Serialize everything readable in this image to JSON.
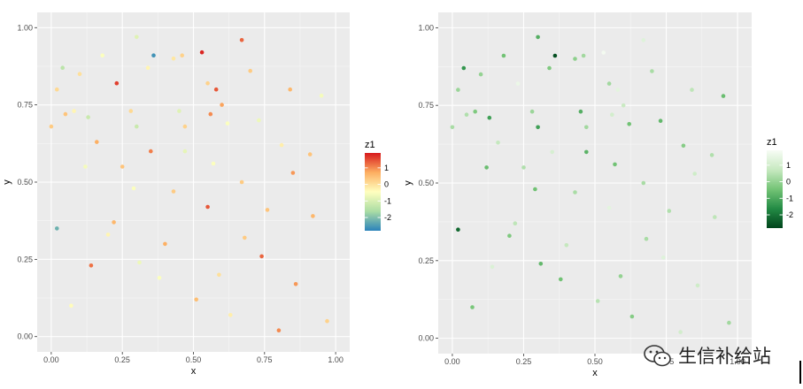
{
  "watermark": {
    "text": "生信补给站"
  },
  "chart_data": [
    {
      "type": "scatter",
      "title": "",
      "xlabel": "x",
      "ylabel": "y",
      "xlim": [
        0,
        1
      ],
      "ylim": [
        0,
        1
      ],
      "x_ticks": [
        "0.00",
        "0.25",
        "0.50",
        "0.75",
        "1.00"
      ],
      "y_ticks": [
        "0.00",
        "0.25",
        "0.50",
        "0.75",
        "1.00"
      ],
      "grid": true,
      "legend": {
        "title": "z1",
        "position": "right",
        "ticks": [
          "1",
          "0",
          "-1",
          "-2"
        ],
        "range": [
          -2.8,
          1.9
        ]
      },
      "colormap": [
        "#d7191c",
        "#fdae61",
        "#ffffbf",
        "#abdda4",
        "#2b83ba"
      ],
      "points": [
        {
          "x": 0.3,
          "y": 0.97,
          "z": -0.9
        },
        {
          "x": 0.46,
          "y": 0.91,
          "z": 0.2
        },
        {
          "x": 0.67,
          "y": 0.96,
          "z": 1.3
        },
        {
          "x": 0.53,
          "y": 0.92,
          "z": 1.8
        },
        {
          "x": 0.36,
          "y": 0.91,
          "z": -2.6
        },
        {
          "x": 0.18,
          "y": 0.91,
          "z": -0.5
        },
        {
          "x": 0.43,
          "y": 0.9,
          "z": -0.1
        },
        {
          "x": 0.34,
          "y": 0.87,
          "z": -0.3
        },
        {
          "x": 0.04,
          "y": 0.87,
          "z": -1.4
        },
        {
          "x": 0.1,
          "y": 0.85,
          "z": 0.0
        },
        {
          "x": 0.55,
          "y": 0.82,
          "z": 0.2
        },
        {
          "x": 0.58,
          "y": 0.8,
          "z": 1.4
        },
        {
          "x": 0.02,
          "y": 0.8,
          "z": 0.1
        },
        {
          "x": 0.84,
          "y": 0.8,
          "z": 0.6
        },
        {
          "x": 0.6,
          "y": 0.75,
          "z": 0.8
        },
        {
          "x": 0.13,
          "y": 0.71,
          "z": -1.2
        },
        {
          "x": 0.28,
          "y": 0.73,
          "z": 0.1
        },
        {
          "x": 0.05,
          "y": 0.72,
          "z": 0.4
        },
        {
          "x": 0.08,
          "y": 0.73,
          "z": -0.3
        },
        {
          "x": 0.45,
          "y": 0.73,
          "z": -0.9
        },
        {
          "x": 0.56,
          "y": 0.72,
          "z": 1.0
        },
        {
          "x": 0.62,
          "y": 0.69,
          "z": -0.5
        },
        {
          "x": 0.47,
          "y": 0.68,
          "z": 0.2
        },
        {
          "x": 0.73,
          "y": 0.7,
          "z": -0.7
        },
        {
          "x": 0.3,
          "y": 0.68,
          "z": -1.2
        },
        {
          "x": 0.0,
          "y": 0.68,
          "z": 0.3
        },
        {
          "x": 0.91,
          "y": 0.59,
          "z": 0.4
        },
        {
          "x": 0.35,
          "y": 0.6,
          "z": 1.1
        },
        {
          "x": 0.47,
          "y": 0.6,
          "z": -0.8
        },
        {
          "x": 0.25,
          "y": 0.55,
          "z": 0.4
        },
        {
          "x": 0.57,
          "y": 0.56,
          "z": -0.5
        },
        {
          "x": 0.67,
          "y": 0.5,
          "z": 0.3
        },
        {
          "x": 0.85,
          "y": 0.53,
          "z": 0.9
        },
        {
          "x": 0.12,
          "y": 0.55,
          "z": -0.6
        },
        {
          "x": 0.29,
          "y": 0.48,
          "z": -0.5
        },
        {
          "x": 0.43,
          "y": 0.47,
          "z": 0.3
        },
        {
          "x": 0.55,
          "y": 0.42,
          "z": 1.4
        },
        {
          "x": 0.76,
          "y": 0.41,
          "z": 0.4
        },
        {
          "x": 0.02,
          "y": 0.35,
          "z": -2.2
        },
        {
          "x": 0.22,
          "y": 0.37,
          "z": 0.6
        },
        {
          "x": 0.4,
          "y": 0.3,
          "z": 0.7
        },
        {
          "x": 0.68,
          "y": 0.32,
          "z": 0.3
        },
        {
          "x": 0.31,
          "y": 0.24,
          "z": -0.7
        },
        {
          "x": 0.14,
          "y": 0.23,
          "z": 1.2
        },
        {
          "x": 0.59,
          "y": 0.2,
          "z": 0.0
        },
        {
          "x": 0.86,
          "y": 0.17,
          "z": 0.9
        },
        {
          "x": 0.51,
          "y": 0.12,
          "z": 0.5
        },
        {
          "x": 0.07,
          "y": 0.1,
          "z": -0.4
        },
        {
          "x": 0.63,
          "y": 0.07,
          "z": -0.2
        },
        {
          "x": 0.8,
          "y": 0.02,
          "z": 1.0
        },
        {
          "x": 0.97,
          "y": 0.05,
          "z": 0.2
        },
        {
          "x": 0.2,
          "y": 0.33,
          "z": -0.3
        },
        {
          "x": 0.38,
          "y": 0.19,
          "z": -0.5
        },
        {
          "x": 0.74,
          "y": 0.26,
          "z": 1.3
        },
        {
          "x": 0.92,
          "y": 0.39,
          "z": 0.6
        },
        {
          "x": 0.81,
          "y": 0.62,
          "z": -0.2
        },
        {
          "x": 0.16,
          "y": 0.63,
          "z": 0.7
        },
        {
          "x": 0.23,
          "y": 0.82,
          "z": 1.6
        },
        {
          "x": 0.7,
          "y": 0.86,
          "z": 0.3
        },
        {
          "x": 0.95,
          "y": 0.78,
          "z": -0.6
        }
      ]
    },
    {
      "type": "scatter",
      "title": "",
      "xlabel": "x",
      "ylabel": "y",
      "xlim": [
        0,
        1
      ],
      "ylim": [
        0,
        1
      ],
      "x_ticks": [
        "0.00",
        "0.25",
        "0.50",
        "0.75",
        "1.00"
      ],
      "y_ticks": [
        "0.00",
        "0.25",
        "0.50",
        "0.75",
        "1.00"
      ],
      "grid": true,
      "legend": {
        "title": "z1",
        "position": "right",
        "ticks": [
          "1",
          "0",
          "-1",
          "-2"
        ],
        "range": [
          -2.8,
          1.9
        ]
      },
      "colormap": [
        "#f7fcf5",
        "#c7e9c0",
        "#74c476",
        "#238b45",
        "#00441b"
      ],
      "points": [
        {
          "x": 0.3,
          "y": 0.97,
          "z": -0.9
        },
        {
          "x": 0.46,
          "y": 0.91,
          "z": 0.2
        },
        {
          "x": 0.67,
          "y": 0.96,
          "z": 1.3
        },
        {
          "x": 0.53,
          "y": 0.92,
          "z": 1.8
        },
        {
          "x": 0.36,
          "y": 0.91,
          "z": -2.6
        },
        {
          "x": 0.18,
          "y": 0.91,
          "z": -0.5
        },
        {
          "x": 0.43,
          "y": 0.9,
          "z": -0.1
        },
        {
          "x": 0.34,
          "y": 0.87,
          "z": -0.3
        },
        {
          "x": 0.04,
          "y": 0.87,
          "z": -1.4
        },
        {
          "x": 0.1,
          "y": 0.85,
          "z": 0.0
        },
        {
          "x": 0.55,
          "y": 0.82,
          "z": 0.2
        },
        {
          "x": 0.58,
          "y": 0.8,
          "z": 1.4
        },
        {
          "x": 0.02,
          "y": 0.8,
          "z": 0.1
        },
        {
          "x": 0.84,
          "y": 0.8,
          "z": 0.6
        },
        {
          "x": 0.6,
          "y": 0.75,
          "z": 0.8
        },
        {
          "x": 0.13,
          "y": 0.71,
          "z": -1.2
        },
        {
          "x": 0.28,
          "y": 0.73,
          "z": 0.1
        },
        {
          "x": 0.05,
          "y": 0.72,
          "z": 0.4
        },
        {
          "x": 0.08,
          "y": 0.73,
          "z": -0.3
        },
        {
          "x": 0.45,
          "y": 0.73,
          "z": -0.9
        },
        {
          "x": 0.56,
          "y": 0.72,
          "z": 1.0
        },
        {
          "x": 0.62,
          "y": 0.69,
          "z": -0.5
        },
        {
          "x": 0.47,
          "y": 0.68,
          "z": 0.2
        },
        {
          "x": 0.73,
          "y": 0.7,
          "z": -0.7
        },
        {
          "x": 0.3,
          "y": 0.68,
          "z": -1.2
        },
        {
          "x": 0.0,
          "y": 0.68,
          "z": 0.3
        },
        {
          "x": 0.91,
          "y": 0.59,
          "z": 0.4
        },
        {
          "x": 0.35,
          "y": 0.6,
          "z": 1.1
        },
        {
          "x": 0.47,
          "y": 0.6,
          "z": -0.8
        },
        {
          "x": 0.25,
          "y": 0.55,
          "z": 0.4
        },
        {
          "x": 0.57,
          "y": 0.56,
          "z": -0.5
        },
        {
          "x": 0.67,
          "y": 0.5,
          "z": 0.3
        },
        {
          "x": 0.85,
          "y": 0.53,
          "z": 0.9
        },
        {
          "x": 0.12,
          "y": 0.55,
          "z": -0.6
        },
        {
          "x": 0.29,
          "y": 0.48,
          "z": -0.5
        },
        {
          "x": 0.43,
          "y": 0.47,
          "z": 0.3
        },
        {
          "x": 0.55,
          "y": 0.42,
          "z": 1.4
        },
        {
          "x": 0.76,
          "y": 0.41,
          "z": 0.4
        },
        {
          "x": 0.02,
          "y": 0.35,
          "z": -2.2
        },
        {
          "x": 0.22,
          "y": 0.37,
          "z": 0.6
        },
        {
          "x": 0.4,
          "y": 0.3,
          "z": 0.7
        },
        {
          "x": 0.68,
          "y": 0.32,
          "z": 0.3
        },
        {
          "x": 0.31,
          "y": 0.24,
          "z": -0.7
        },
        {
          "x": 0.14,
          "y": 0.23,
          "z": 1.2
        },
        {
          "x": 0.59,
          "y": 0.2,
          "z": 0.0
        },
        {
          "x": 0.86,
          "y": 0.17,
          "z": 0.9
        },
        {
          "x": 0.51,
          "y": 0.12,
          "z": 0.5
        },
        {
          "x": 0.07,
          "y": 0.1,
          "z": -0.4
        },
        {
          "x": 0.63,
          "y": 0.07,
          "z": -0.2
        },
        {
          "x": 0.8,
          "y": 0.02,
          "z": 1.0
        },
        {
          "x": 0.97,
          "y": 0.05,
          "z": 0.2
        },
        {
          "x": 0.2,
          "y": 0.33,
          "z": -0.3
        },
        {
          "x": 0.38,
          "y": 0.19,
          "z": -0.5
        },
        {
          "x": 0.74,
          "y": 0.26,
          "z": 1.3
        },
        {
          "x": 0.92,
          "y": 0.39,
          "z": 0.6
        },
        {
          "x": 0.81,
          "y": 0.62,
          "z": -0.2
        },
        {
          "x": 0.16,
          "y": 0.63,
          "z": 0.7
        },
        {
          "x": 0.23,
          "y": 0.82,
          "z": 1.6
        },
        {
          "x": 0.7,
          "y": 0.86,
          "z": 0.3
        },
        {
          "x": 0.95,
          "y": 0.78,
          "z": -0.6
        }
      ]
    }
  ]
}
